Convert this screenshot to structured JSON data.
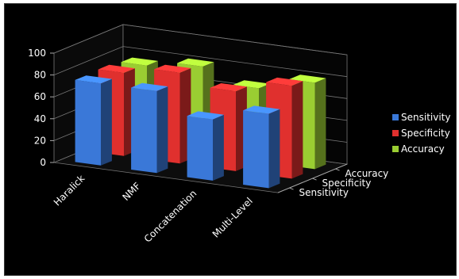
{
  "chart_data": {
    "type": "bar",
    "style": "3d-clustered-depth",
    "categories": [
      "Haralick",
      "NMF",
      "Concatenation",
      "Multi-Level"
    ],
    "series": [
      {
        "name": "Sensitivity",
        "values": [
          75,
          75,
          56,
          68
        ],
        "color": "#3a78d8"
      },
      {
        "name": "Specificity",
        "values": [
          76,
          83,
          73,
          85
        ],
        "color": "#e0302e"
      },
      {
        "name": "Accuracy",
        "values": [
          74,
          80,
          67,
          79
        ],
        "color": "#9acd32"
      }
    ],
    "y_ticks": [
      "0",
      "20",
      "40",
      "60",
      "80",
      "100"
    ],
    "ylim": [
      0,
      100
    ],
    "depth_labels": [
      "Accuracy",
      "Specificity",
      "Sensitivity"
    ],
    "legend_position": "right",
    "background": "#000000"
  }
}
